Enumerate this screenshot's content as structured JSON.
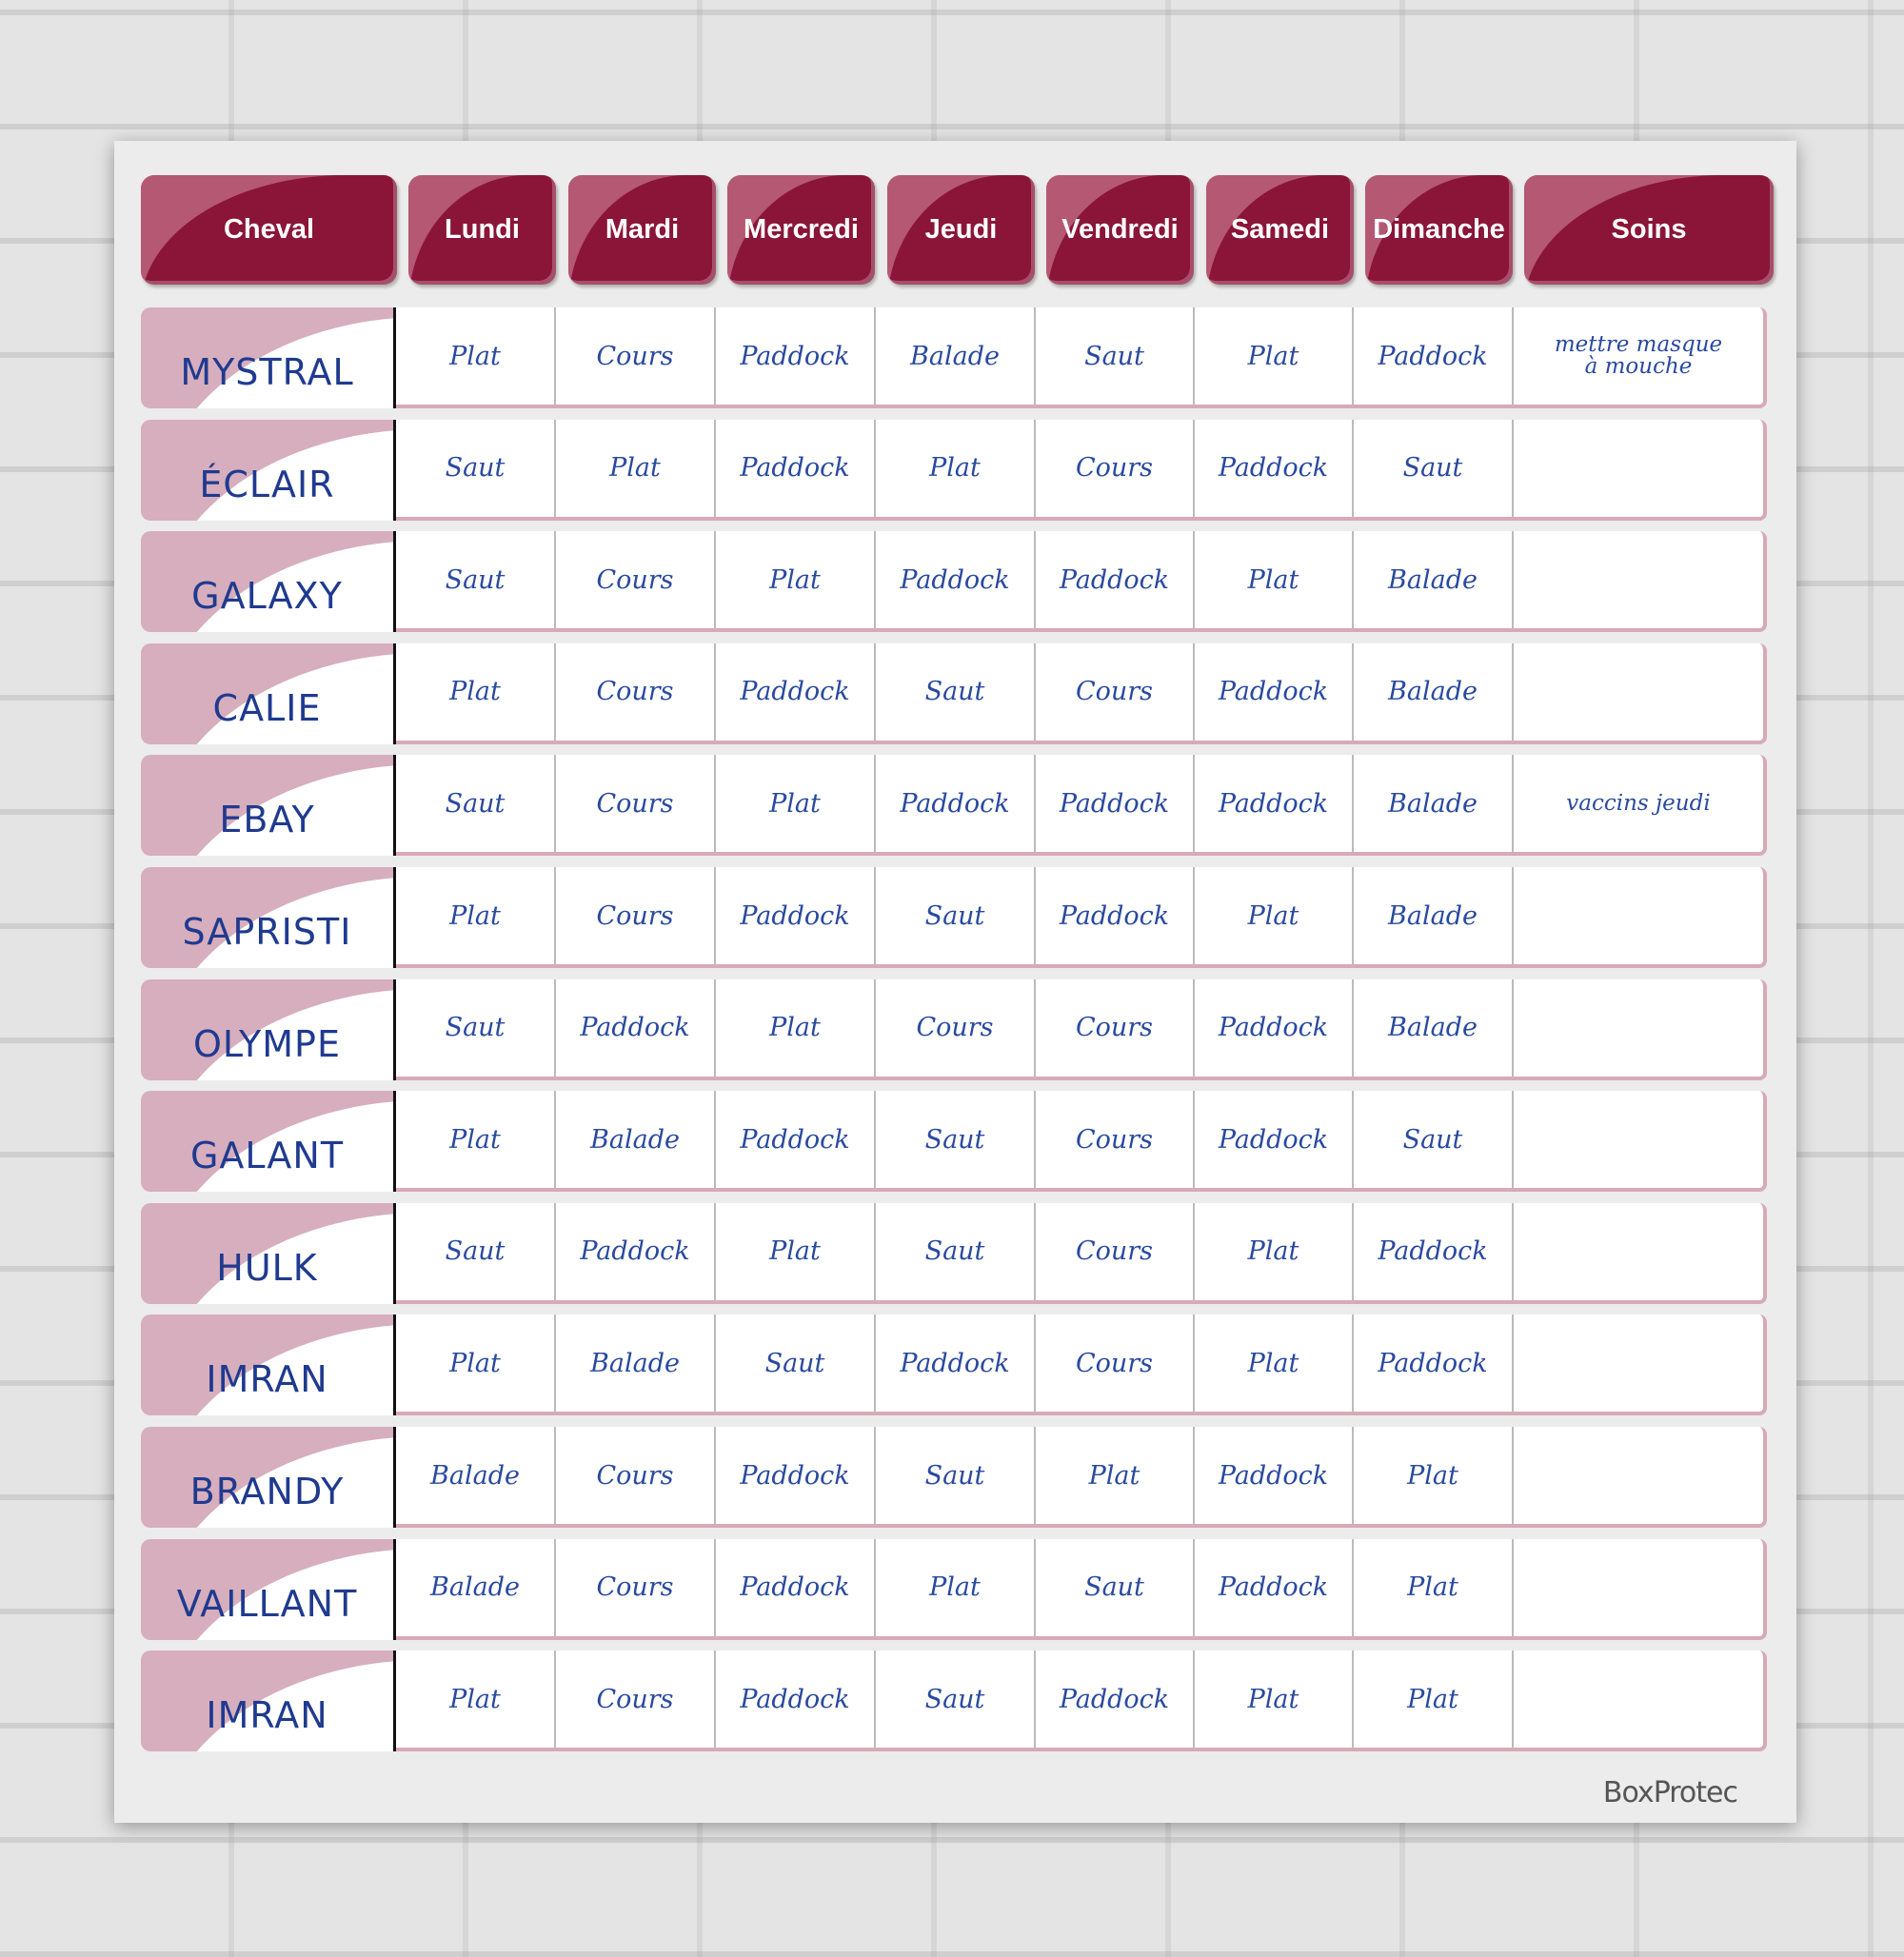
{
  "headers": [
    "Cheval",
    "Lundi",
    "Mardi",
    "Mercredi",
    "Jeudi",
    "Vendredi",
    "Samedi",
    "Dimanche",
    "Soins"
  ],
  "rows": [
    {
      "name": "MYSTRAL",
      "days": [
        "Plat",
        "Cours",
        "Paddock",
        "Balade",
        "Saut",
        "Plat",
        "Paddock"
      ],
      "soins": "mettre masque à mouche"
    },
    {
      "name": "ÉCLAIR",
      "days": [
        "Saut",
        "Plat",
        "Paddock",
        "Plat",
        "Cours",
        "Paddock",
        "Saut"
      ],
      "soins": ""
    },
    {
      "name": "GALAXY",
      "days": [
        "Saut",
        "Cours",
        "Plat",
        "Paddock",
        "Paddock",
        "Plat",
        "Balade"
      ],
      "soins": ""
    },
    {
      "name": "CALIE",
      "days": [
        "Plat",
        "Cours",
        "Paddock",
        "Saut",
        "Cours",
        "Paddock",
        "Balade"
      ],
      "soins": ""
    },
    {
      "name": "EBAY",
      "days": [
        "Saut",
        "Cours",
        "Plat",
        "Paddock",
        "Paddock",
        "Paddock",
        "Balade"
      ],
      "soins": "vaccins jeudi"
    },
    {
      "name": "SAPRISTI",
      "days": [
        "Plat",
        "Cours",
        "Paddock",
        "Saut",
        "Paddock",
        "Plat",
        "Balade"
      ],
      "soins": ""
    },
    {
      "name": "OLYMPE",
      "days": [
        "Saut",
        "Paddock",
        "Plat",
        "Cours",
        "Cours",
        "Paddock",
        "Balade"
      ],
      "soins": ""
    },
    {
      "name": "GALANT",
      "days": [
        "Plat",
        "Balade",
        "Paddock",
        "Saut",
        "Cours",
        "Paddock",
        "Saut"
      ],
      "soins": ""
    },
    {
      "name": "HULK",
      "days": [
        "Saut",
        "Paddock",
        "Plat",
        "Saut",
        "Cours",
        "Plat",
        "Paddock"
      ],
      "soins": ""
    },
    {
      "name": "IMRAN",
      "days": [
        "Plat",
        "Balade",
        "Saut",
        "Paddock",
        "Cours",
        "Plat",
        "Paddock"
      ],
      "soins": ""
    },
    {
      "name": "BRANDY",
      "days": [
        "Balade",
        "Cours",
        "Paddock",
        "Saut",
        "Plat",
        "Paddock",
        "Plat"
      ],
      "soins": ""
    },
    {
      "name": "VAILLANT",
      "days": [
        "Balade",
        "Cours",
        "Paddock",
        "Plat",
        "Saut",
        "Paddock",
        "Plat"
      ],
      "soins": ""
    },
    {
      "name": "IMRAN",
      "days": [
        "Plat",
        "Cours",
        "Paddock",
        "Saut",
        "Paddock",
        "Plat",
        "Plat"
      ],
      "soins": ""
    }
  ],
  "logo": "BoxProtec",
  "colors": {
    "header": "#8a1538",
    "accent_pink": "#d7aebd",
    "ink": "#2a4aa0"
  }
}
